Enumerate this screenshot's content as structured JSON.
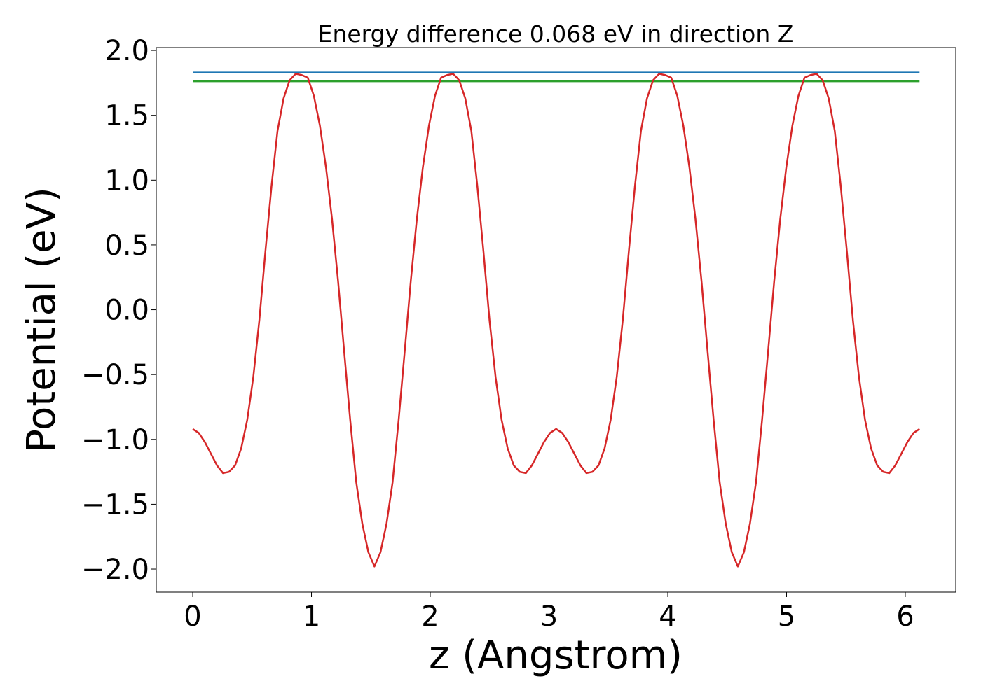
{
  "chart_data": {
    "type": "line",
    "title": "Energy difference 0.068 eV in direction Z",
    "xlabel": "z (Angstrom)",
    "ylabel": "Potential (eV)",
    "xlim": [
      -0.307,
      6.425
    ],
    "ylim": [
      -2.178,
      2.022
    ],
    "xticks": [
      0,
      1,
      2,
      3,
      4,
      5,
      6
    ],
    "yticks": [
      {
        "value": -2.0,
        "label": "−2.0"
      },
      {
        "value": -1.5,
        "label": "−1.5"
      },
      {
        "value": -1.0,
        "label": "−1.0"
      },
      {
        "value": -0.5,
        "label": "−0.5"
      },
      {
        "value": 0.0,
        "label": "0.0"
      },
      {
        "value": 0.5,
        "label": "0.5"
      },
      {
        "value": 1.0,
        "label": "1.0"
      },
      {
        "value": 1.5,
        "label": "1.5"
      },
      {
        "value": 2.0,
        "label": "2.0"
      }
    ],
    "series": [
      {
        "color": "#1f77b4",
        "x": [
          0,
          6.12
        ],
        "values": [
          1.83,
          1.83
        ]
      },
      {
        "color": "#2ca02c",
        "x": [
          0,
          6.12
        ],
        "values": [
          1.762,
          1.762
        ]
      },
      {
        "color": "#d62728",
        "x": [
          0,
          0.051,
          0.102,
          0.153,
          0.204,
          0.255,
          0.306,
          0.357,
          0.408,
          0.459,
          0.51,
          0.561,
          0.612,
          0.663,
          0.714,
          0.765,
          0.816,
          0.867,
          0.918,
          0.969,
          1.02,
          1.071,
          1.122,
          1.173,
          1.224,
          1.275,
          1.326,
          1.377,
          1.428,
          1.479,
          1.53,
          1.581,
          1.632,
          1.683,
          1.734,
          1.785,
          1.836,
          1.887,
          1.938,
          1.989,
          2.04,
          2.091,
          2.142,
          2.193,
          2.244,
          2.295,
          2.346,
          2.397,
          2.448,
          2.499,
          2.55,
          2.601,
          2.652,
          2.703,
          2.754,
          2.805,
          2.856,
          2.907,
          2.958,
          3.009,
          3.06,
          3.111,
          3.162,
          3.213,
          3.264,
          3.315,
          3.366,
          3.417,
          3.468,
          3.519,
          3.57,
          3.621,
          3.672,
          3.723,
          3.774,
          3.825,
          3.876,
          3.927,
          3.978,
          4.029,
          4.08,
          4.131,
          4.182,
          4.233,
          4.284,
          4.335,
          4.386,
          4.437,
          4.488,
          4.539,
          4.59,
          4.641,
          4.692,
          4.743,
          4.794,
          4.845,
          4.896,
          4.947,
          4.998,
          5.049,
          5.1,
          5.151,
          5.202,
          5.253,
          5.304,
          5.355,
          5.406,
          5.457,
          5.508,
          5.559,
          5.61,
          5.661,
          5.712,
          5.763,
          5.814,
          5.865,
          5.916,
          5.967,
          6.018,
          6.069,
          6.12
        ],
        "values": [
          -0.92,
          -0.95,
          -1.02,
          -1.11,
          -1.2,
          -1.26,
          -1.25,
          -1.2,
          -1.07,
          -0.85,
          -0.52,
          -0.08,
          0.45,
          0.95,
          1.38,
          1.63,
          1.77,
          1.82,
          1.81,
          1.79,
          1.65,
          1.42,
          1.1,
          0.7,
          0.22,
          -0.32,
          -0.85,
          -1.33,
          -1.65,
          -1.87,
          -1.98,
          -1.87,
          -1.65,
          -1.33,
          -0.85,
          -0.32,
          0.22,
          0.7,
          1.1,
          1.42,
          1.65,
          1.79,
          1.81,
          1.82,
          1.77,
          1.63,
          1.38,
          0.95,
          0.45,
          -0.08,
          -0.52,
          -0.85,
          -1.07,
          -1.2,
          -1.25,
          -1.26,
          -1.2,
          -1.11,
          -1.02,
          -0.95,
          -0.92,
          -0.95,
          -1.02,
          -1.11,
          -1.2,
          -1.26,
          -1.25,
          -1.2,
          -1.07,
          -0.85,
          -0.52,
          -0.08,
          0.45,
          0.95,
          1.38,
          1.63,
          1.77,
          1.82,
          1.81,
          1.79,
          1.65,
          1.42,
          1.1,
          0.7,
          0.22,
          -0.32,
          -0.85,
          -1.33,
          -1.65,
          -1.87,
          -1.98,
          -1.87,
          -1.65,
          -1.33,
          -0.85,
          -0.32,
          0.22,
          0.7,
          1.1,
          1.42,
          1.65,
          1.79,
          1.81,
          1.82,
          1.77,
          1.63,
          1.38,
          0.95,
          0.45,
          -0.08,
          -0.52,
          -0.85,
          -1.07,
          -1.2,
          -1.25,
          -1.26,
          -1.2,
          -1.11,
          -1.02,
          -0.95,
          -0.92
        ]
      }
    ]
  }
}
